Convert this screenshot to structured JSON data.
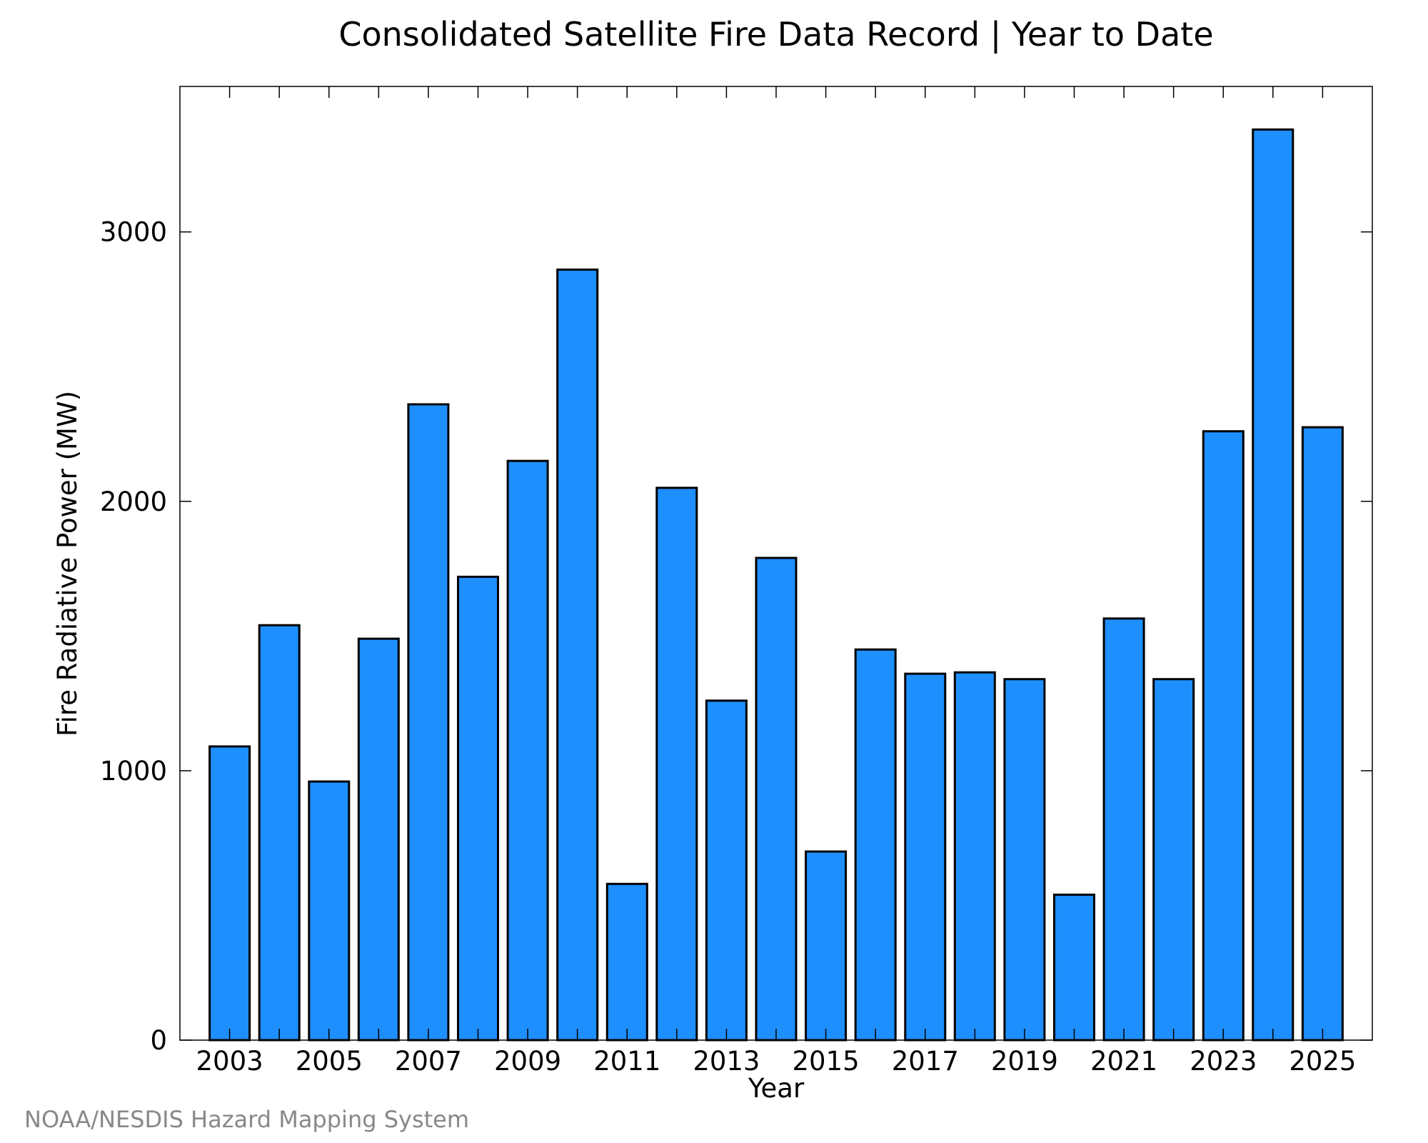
{
  "source_credit": "NOAA/NESDIS Hazard Mapping System",
  "colors": {
    "bar_fill": "#1e8fff",
    "bar_stroke": "#000000",
    "credit_text": "#888888"
  },
  "chart_data": {
    "type": "bar",
    "title": "Consolidated Satellite Fire Data Record | Year to Date",
    "xlabel": "Year",
    "ylabel": "Fire Radiative Power (MW)",
    "categories": [
      2003,
      2004,
      2005,
      2006,
      2007,
      2008,
      2009,
      2010,
      2011,
      2012,
      2013,
      2014,
      2015,
      2016,
      2017,
      2018,
      2019,
      2020,
      2021,
      2022,
      2023,
      2024,
      2025
    ],
    "values": [
      1090,
      1540,
      960,
      1490,
      2360,
      1720,
      2150,
      2860,
      580,
      2050,
      1260,
      1790,
      700,
      1450,
      1360,
      1365,
      1340,
      540,
      1565,
      1340,
      2260,
      3380,
      2275
    ],
    "x_tick_labels": [
      "2003",
      "2005",
      "2007",
      "2009",
      "2011",
      "2013",
      "2015",
      "2017",
      "2019",
      "2021",
      "2023",
      "2025"
    ],
    "y_tick_labels": [
      "0",
      "1000",
      "2000",
      "3000"
    ],
    "y_ticks": [
      0,
      1000,
      2000,
      3000
    ],
    "ylim": [
      0,
      3540
    ],
    "xlim": [
      2002,
      2026
    ],
    "grid": false,
    "legend": "none"
  }
}
